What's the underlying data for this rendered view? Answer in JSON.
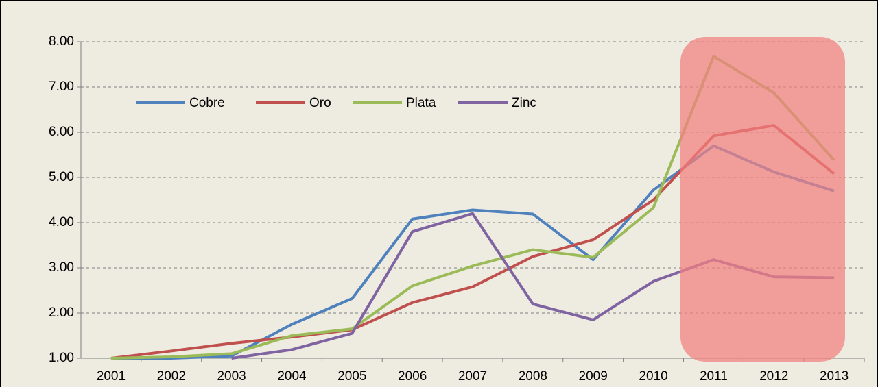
{
  "chart_data": {
    "type": "line",
    "categories": [
      "2001",
      "2002",
      "2003",
      "2004",
      "2005",
      "2006",
      "2007",
      "2008",
      "2009",
      "2010",
      "2011",
      "2012",
      "2013"
    ],
    "series": [
      {
        "name": "Cobre",
        "color": "#4f81bd",
        "values": [
          1.0,
          1.0,
          1.05,
          1.75,
          2.32,
          4.08,
          4.28,
          4.19,
          3.18,
          4.72,
          5.7,
          5.12,
          4.7
        ]
      },
      {
        "name": "Oro",
        "color": "#c0504d",
        "values": [
          1.0,
          1.16,
          1.33,
          1.47,
          1.63,
          2.23,
          2.58,
          3.25,
          3.62,
          4.5,
          5.92,
          6.15,
          5.08
        ]
      },
      {
        "name": "Plata",
        "color": "#9bbb59",
        "values": [
          1.0,
          1.03,
          1.1,
          1.5,
          1.65,
          2.6,
          3.04,
          3.4,
          3.23,
          4.33,
          7.68,
          6.87,
          5.38
        ]
      },
      {
        "name": "Zinc",
        "color": "#8064a2",
        "values": [
          null,
          null,
          1.0,
          1.19,
          1.55,
          3.8,
          4.2,
          2.2,
          1.85,
          2.7,
          3.18,
          2.8,
          2.78
        ]
      }
    ],
    "ylim": [
      1,
      8
    ],
    "yticks": [
      {
        "value": 1,
        "label": "1.00"
      },
      {
        "value": 2,
        "label": "2.00"
      },
      {
        "value": 3,
        "label": "3.00"
      },
      {
        "value": 4,
        "label": "4.00"
      },
      {
        "value": 5,
        "label": "5.00"
      },
      {
        "value": 6,
        "label": "6.00"
      },
      {
        "value": 7,
        "label": "7.00"
      },
      {
        "value": 8,
        "label": "8.00"
      }
    ],
    "grid": true
  }
}
